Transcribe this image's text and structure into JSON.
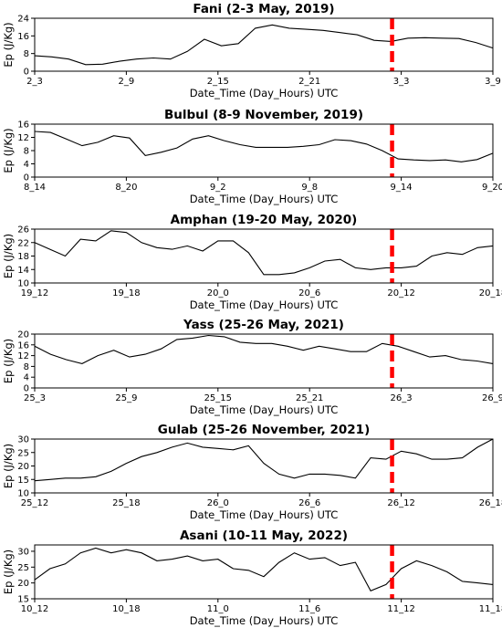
{
  "chart_data": [
    {
      "type": "line",
      "title": "Fani (2-3 May, 2019)",
      "xlabel": "Date_Time (Day_Hours) UTC",
      "ylabel": "Ep (J/Kg)",
      "ylim": [
        0,
        24
      ],
      "yticks": [
        "0",
        "8",
        "16",
        "24"
      ],
      "xticks": [
        "2_3",
        "2_9",
        "2_15",
        "2_21",
        "3_3",
        "3_9"
      ],
      "marker_label": "3_3",
      "values": [
        7.0,
        6.5,
        5.5,
        3.0,
        3.2,
        4.5,
        5.5,
        6.0,
        5.5,
        9.0,
        14.5,
        11.5,
        12.5,
        19.5,
        21.0,
        19.5,
        19.0,
        18.5,
        17.5,
        16.5,
        14.0,
        13.5,
        15.0,
        15.2,
        15.0,
        14.8,
        13.0,
        10.5
      ]
    },
    {
      "type": "line",
      "title": "Bulbul (8-9 November, 2019)",
      "xlabel": "Date_Time (Day_Hours) UTC",
      "ylabel": "Ep (J/Kg)",
      "ylim": [
        0,
        16
      ],
      "yticks": [
        "0",
        "4",
        "8",
        "12",
        "16"
      ],
      "xticks": [
        "8_14",
        "8_20",
        "9_2",
        "9_8",
        "9_14",
        "9_20"
      ],
      "marker_label": "9_14",
      "values": [
        13.8,
        13.5,
        11.5,
        9.5,
        10.5,
        12.5,
        11.8,
        6.5,
        7.5,
        8.8,
        11.5,
        12.5,
        11.0,
        9.8,
        9.0,
        9.0,
        9.0,
        9.3,
        9.8,
        11.3,
        11.0,
        10.0,
        8.0,
        5.5,
        5.2,
        5.0,
        5.2,
        4.6,
        5.3,
        7.2
      ]
    },
    {
      "type": "line",
      "title": "Amphan (19-20 May, 2020)",
      "xlabel": "Date_Time (Day_Hours) UTC",
      "ylabel": "Ep (J/Kg)",
      "ylim": [
        10,
        26
      ],
      "yticks": [
        "10",
        "14",
        "18",
        "22",
        "26"
      ],
      "xticks": [
        "19_12",
        "19_18",
        "20_0",
        "20_6",
        "20_12",
        "20_18"
      ],
      "marker_label": "20_12",
      "values": [
        22.0,
        20.0,
        18.0,
        23.0,
        22.5,
        25.5,
        25.0,
        22.0,
        20.5,
        20.0,
        21.0,
        19.5,
        22.5,
        22.5,
        19.0,
        12.5,
        12.5,
        13.0,
        14.5,
        16.5,
        17.0,
        14.5,
        14.0,
        14.5,
        14.5,
        15.0,
        18.0,
        19.0,
        18.5,
        20.5,
        21.0
      ]
    },
    {
      "type": "line",
      "title": "Yass (25-26 May, 2021)",
      "xlabel": "Date_Time (Day_Hours) UTC",
      "ylabel": "Ep (J/Kg)",
      "ylim": [
        0,
        20
      ],
      "yticks": [
        "0",
        "4",
        "8",
        "12",
        "16",
        "20"
      ],
      "xticks": [
        "25_3",
        "25_9",
        "25_15",
        "25_21",
        "26_3",
        "26_9"
      ],
      "marker_label": "26_3",
      "values": [
        15.5,
        12.5,
        10.5,
        9.0,
        12.0,
        14.0,
        11.5,
        12.5,
        14.5,
        18.0,
        18.5,
        19.5,
        19.0,
        17.0,
        16.5,
        16.5,
        15.5,
        14.0,
        15.5,
        14.5,
        13.5,
        13.5,
        16.5,
        15.5,
        13.5,
        11.5,
        12.0,
        10.5,
        10.0,
        9.0
      ]
    },
    {
      "type": "line",
      "title": "Gulab (25-26 November, 2021)",
      "xlabel": "Date_Time (Day_Hours) UTC",
      "ylabel": "Ep (J/Kg)",
      "ylim": [
        10,
        30
      ],
      "yticks": [
        "10",
        "15",
        "20",
        "25",
        "30"
      ],
      "xticks": [
        "25_12",
        "25_18",
        "26_0",
        "26_6",
        "26_12",
        "26_18"
      ],
      "marker_label": "26_12",
      "values": [
        14.5,
        15.0,
        15.5,
        15.5,
        16.0,
        18.0,
        21.0,
        23.5,
        25.0,
        27.0,
        28.5,
        27.0,
        26.5,
        26.0,
        27.5,
        21.0,
        17.0,
        15.5,
        17.0,
        17.0,
        16.5,
        15.5,
        23.0,
        22.5,
        25.5,
        24.5,
        22.5,
        22.5,
        23.0,
        27.0,
        30.0
      ]
    },
    {
      "type": "line",
      "title": "Asani (10-11 May, 2022)",
      "xlabel": "Date_Time (Day_Hours) UTC",
      "ylabel": "Ep (J/Kg)",
      "ylim": [
        15,
        32
      ],
      "yticks": [
        "15",
        "20",
        "25",
        "30"
      ],
      "xticks": [
        "10_12",
        "10_18",
        "11_0",
        "11_6",
        "11_12",
        "11_18"
      ],
      "marker_label": "11_12",
      "values": [
        21.0,
        24.5,
        26.0,
        29.5,
        31.0,
        29.5,
        30.5,
        29.5,
        27.0,
        27.5,
        28.5,
        27.0,
        27.5,
        24.5,
        24.0,
        22.0,
        26.5,
        29.5,
        27.5,
        28.0,
        25.5,
        26.5,
        17.5,
        19.5,
        24.5,
        27.0,
        25.5,
        23.5,
        20.5,
        20.0,
        19.5
      ]
    }
  ]
}
